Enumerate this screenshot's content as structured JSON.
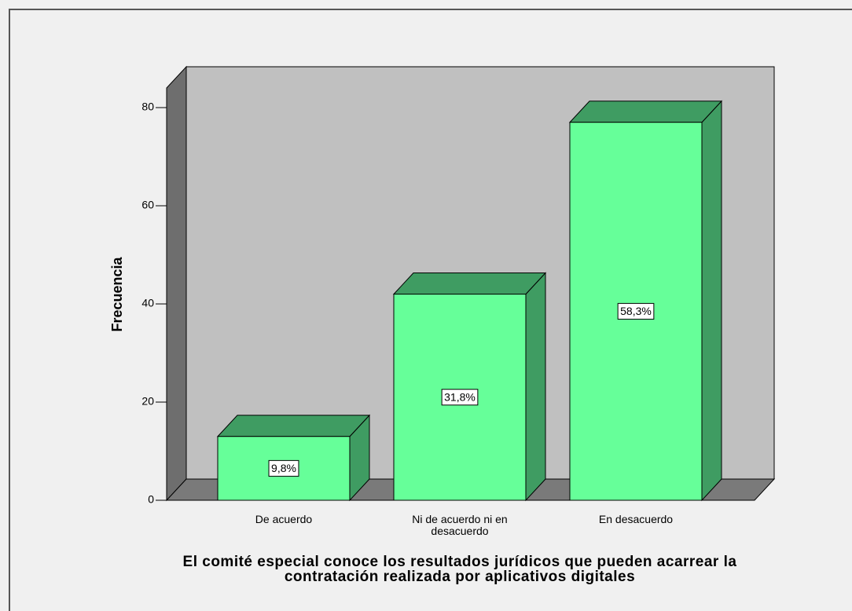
{
  "chart_data": {
    "type": "bar3d",
    "x_label": "El comité especial conoce los resultados jurídicos que pueden acarrear la contratación realizada por aplicativos digitales",
    "y_label": "Frecuencia",
    "categories": [
      "De acuerdo",
      "Ni de acuerdo ni en desacuerdo",
      "En desacuerdo"
    ],
    "values": [
      13,
      42,
      77
    ],
    "percentages": [
      9.8,
      31.8,
      58.3
    ],
    "percentage_labels": [
      "9,8%",
      "31,8%",
      "58,3%"
    ],
    "color": "#66ff99",
    "side_color": "#3f9c62",
    "ylim": [
      0,
      84
    ],
    "yticks": [
      0,
      20,
      40,
      60,
      80
    ]
  }
}
